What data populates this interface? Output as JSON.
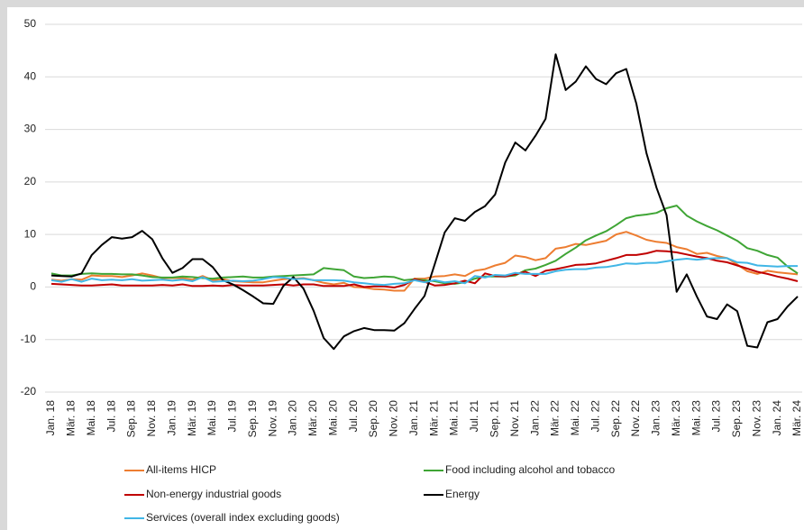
{
  "chart_data": {
    "type": "line",
    "categories": [
      "Jan. 18",
      null,
      "Mär. 18",
      null,
      "Mai. 18",
      null,
      "Jul. 18",
      null,
      "Sep. 18",
      null,
      "Nov. 18",
      null,
      "Jan. 19",
      null,
      "Mär. 19",
      null,
      "Mai. 19",
      null,
      "Jul. 19",
      null,
      "Sep. 19",
      null,
      "Nov. 19",
      null,
      "Jan. 20",
      null,
      "Mär. 20",
      null,
      "Mai. 20",
      null,
      "Jul. 20",
      null,
      "Sep. 20",
      null,
      "Nov. 20",
      null,
      "Jan. 21",
      null,
      "Mär. 21",
      null,
      "Mai. 21",
      null,
      "Jul. 21",
      null,
      "Sep. 21",
      null,
      "Nov. 21",
      null,
      "Jan. 22",
      null,
      "Mär. 22",
      null,
      "Mai. 22",
      null,
      "Jul. 22",
      null,
      "Sep. 22",
      null,
      "Nov. 22",
      null,
      "Jan. 23",
      null,
      "Mär. 23",
      null,
      "Mai. 23",
      null,
      "Jul. 23",
      null,
      "Sep. 23",
      null,
      "Nov. 23",
      null,
      "Jan. 24",
      null,
      "Mär. 24"
    ],
    "series": [
      {
        "name": "All-items HICP",
        "color": "#ed7d31",
        "values": [
          1.4,
          1.2,
          1.5,
          1.4,
          2.2,
          2.1,
          2.1,
          1.9,
          2.2,
          2.6,
          2.2,
          1.7,
          1.7,
          1.7,
          1.4,
          2.1,
          1.3,
          1.5,
          1.1,
          1.0,
          0.9,
          0.9,
          1.2,
          1.5,
          1.6,
          1.7,
          1.3,
          0.8,
          0.5,
          0.8,
          0.0,
          -0.1,
          -0.4,
          -0.5,
          -0.7,
          -0.7,
          1.6,
          1.6,
          2.0,
          2.1,
          2.4,
          2.1,
          3.1,
          3.4,
          4.1,
          4.6,
          6.0,
          5.7,
          5.1,
          5.5,
          7.3,
          7.6,
          8.2,
          8.0,
          8.4,
          8.8,
          10.0,
          10.5,
          9.8,
          9.0,
          8.6,
          8.4,
          7.6,
          7.2,
          6.3,
          6.5,
          5.9,
          5.5,
          4.3,
          3.0,
          2.5,
          3.1,
          2.8,
          2.6,
          2.4
        ]
      },
      {
        "name": "Food including alcohol and tobacco",
        "color": "#3fa535",
        "values": [
          2.6,
          2.2,
          2.2,
          2.5,
          2.6,
          2.5,
          2.5,
          2.4,
          2.4,
          2.2,
          1.9,
          1.8,
          1.8,
          2.0,
          1.9,
          1.7,
          1.6,
          1.8,
          1.9,
          2.0,
          1.8,
          1.8,
          2.0,
          2.1,
          2.2,
          2.3,
          2.4,
          3.6,
          3.4,
          3.2,
          2.0,
          1.7,
          1.8,
          2.0,
          1.9,
          1.3,
          1.5,
          1.3,
          1.1,
          0.7,
          0.6,
          0.9,
          1.6,
          2.0,
          2.0,
          2.0,
          2.2,
          3.2,
          3.5,
          4.2,
          5.0,
          6.3,
          7.5,
          8.9,
          9.8,
          10.6,
          11.8,
          13.1,
          13.6,
          13.8,
          14.1,
          15.0,
          15.5,
          13.6,
          12.5,
          11.6,
          10.8,
          9.8,
          8.8,
          7.4,
          6.9,
          6.1,
          5.6,
          3.9,
          2.6
        ]
      },
      {
        "name": "Non-energy industrial goods",
        "color": "#c00000",
        "values": [
          0.6,
          0.5,
          0.4,
          0.3,
          0.3,
          0.4,
          0.5,
          0.3,
          0.3,
          0.3,
          0.3,
          0.4,
          0.3,
          0.5,
          0.2,
          0.2,
          0.3,
          0.2,
          0.4,
          0.3,
          0.3,
          0.3,
          0.4,
          0.5,
          0.3,
          0.5,
          0.5,
          0.2,
          0.2,
          0.2,
          0.5,
          0.0,
          0.1,
          0.1,
          -0.1,
          0.4,
          1.5,
          1.0,
          0.3,
          0.4,
          0.7,
          1.2,
          0.7,
          2.6,
          2.1,
          2.0,
          2.4,
          2.9,
          2.1,
          3.1,
          3.4,
          3.8,
          4.2,
          4.3,
          4.5,
          5.0,
          5.5,
          6.1,
          6.1,
          6.4,
          6.9,
          6.8,
          6.6,
          6.2,
          5.8,
          5.5,
          5.0,
          4.7,
          4.1,
          3.5,
          2.9,
          2.5,
          2.0,
          1.6,
          1.1
        ]
      },
      {
        "name": "Energy",
        "color": "#000000",
        "values": [
          2.2,
          2.1,
          2.0,
          2.6,
          6.1,
          8.0,
          9.5,
          9.2,
          9.5,
          10.7,
          9.1,
          5.5,
          2.7,
          3.6,
          5.3,
          5.3,
          3.8,
          1.3,
          0.5,
          -0.6,
          -1.8,
          -3.1,
          -3.2,
          0.2,
          1.9,
          -0.3,
          -4.5,
          -9.7,
          -11.8,
          -9.4,
          -8.4,
          -7.8,
          -8.2,
          -8.2,
          -8.3,
          -6.9,
          -4.2,
          -1.7,
          4.3,
          10.4,
          13.1,
          12.6,
          14.3,
          15.4,
          17.6,
          23.7,
          27.5,
          26.0,
          28.8,
          32.0,
          44.3,
          37.5,
          39.1,
          42.0,
          39.6,
          38.6,
          40.7,
          41.5,
          34.9,
          25.5,
          18.9,
          13.7,
          -0.9,
          2.4,
          -1.8,
          -5.6,
          -6.1,
          -3.3,
          -4.6,
          -11.2,
          -11.5,
          -6.7,
          -6.1,
          -3.7,
          -1.8
        ]
      },
      {
        "name": "Services (overall index excluding goods)",
        "color": "#41b6e6",
        "values": [
          1.3,
          1.0,
          1.5,
          1.0,
          1.6,
          1.3,
          1.4,
          1.3,
          1.5,
          1.2,
          1.3,
          1.4,
          1.2,
          1.4,
          1.1,
          1.9,
          1.0,
          1.1,
          1.2,
          1.1,
          1.2,
          1.5,
          1.9,
          1.8,
          1.5,
          1.6,
          1.3,
          1.3,
          1.3,
          1.2,
          0.9,
          0.7,
          0.5,
          0.4,
          0.6,
          0.7,
          1.3,
          0.9,
          1.3,
          0.9,
          1.1,
          0.7,
          2.1,
          1.8,
          2.3,
          2.2,
          2.7,
          2.5,
          2.5,
          2.5,
          3.0,
          3.3,
          3.4,
          3.4,
          3.7,
          3.8,
          4.1,
          4.5,
          4.4,
          4.6,
          4.6,
          4.9,
          5.2,
          5.4,
          5.2,
          5.4,
          5.5,
          5.5,
          4.7,
          4.6,
          4.1,
          4.0,
          3.9,
          4.0,
          4.0
        ]
      }
    ],
    "ylim": [
      -20,
      50
    ],
    "yticks": [
      -20,
      -10,
      0,
      10,
      20,
      30,
      40,
      50
    ],
    "grid": true
  }
}
